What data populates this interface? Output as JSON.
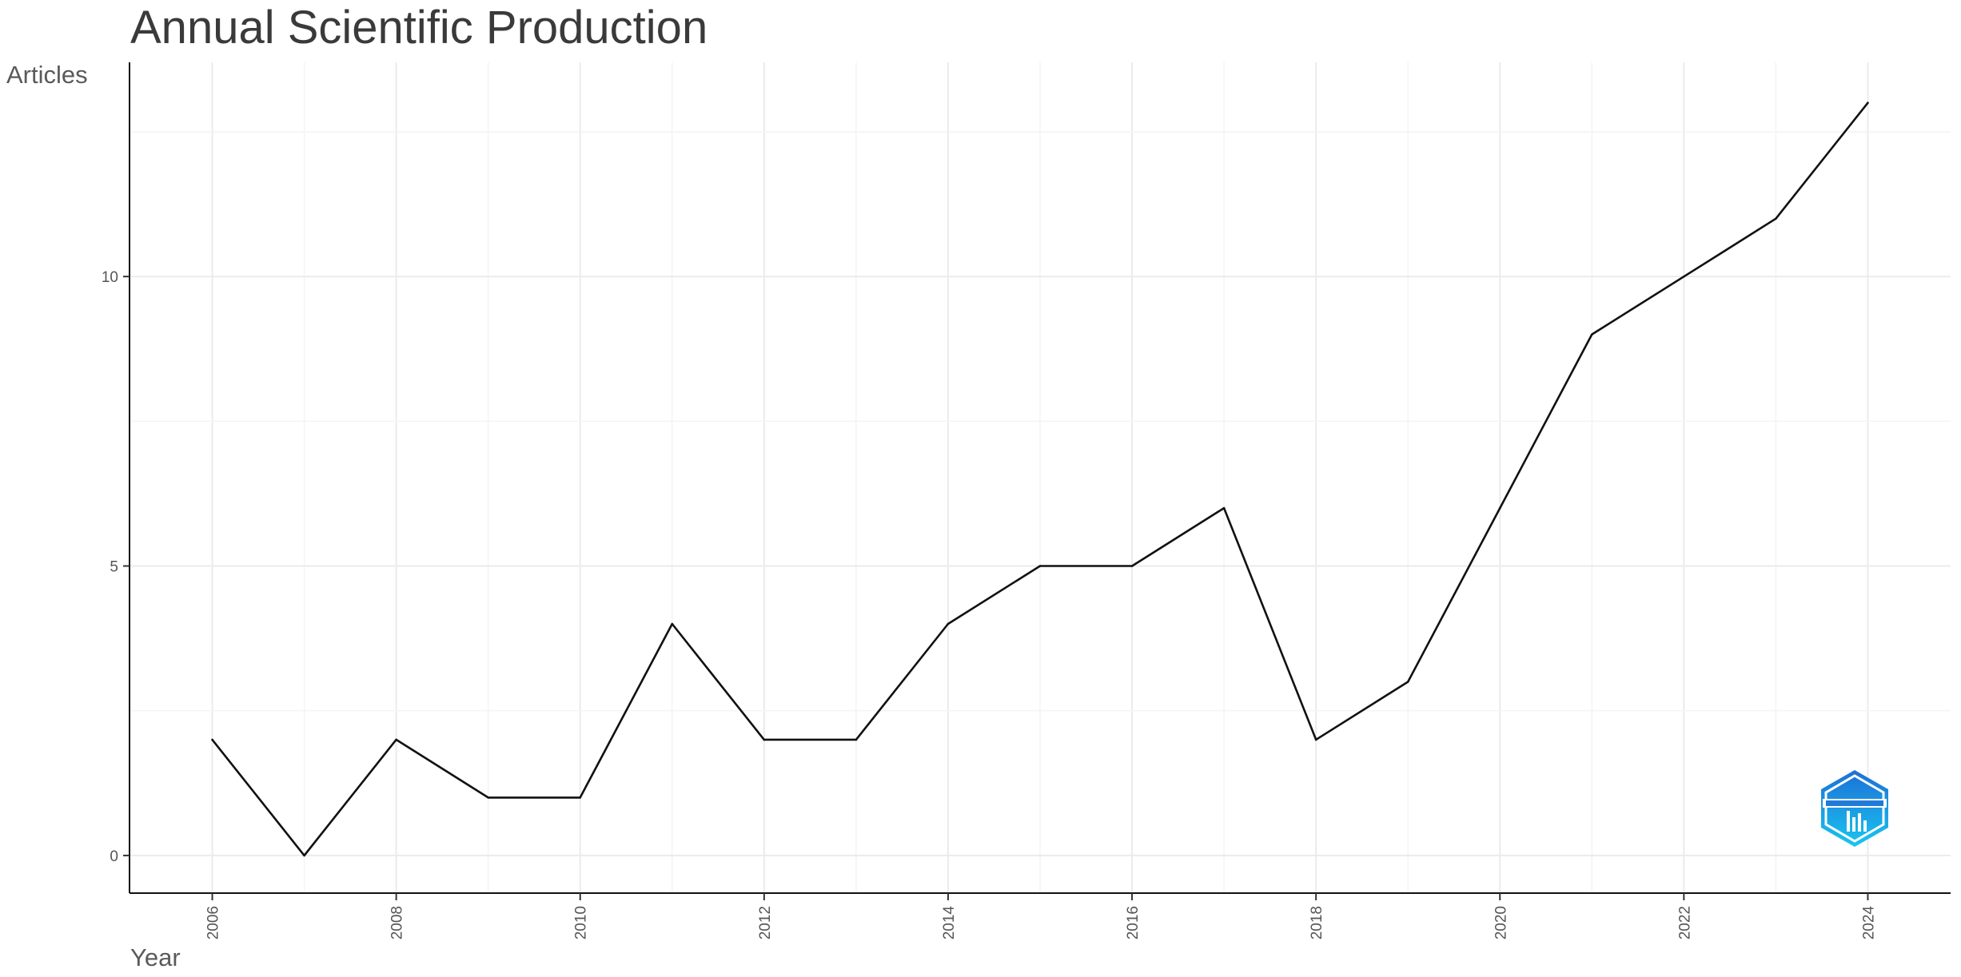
{
  "chart_data": {
    "type": "line",
    "title": "Annual Scientific Production",
    "xlabel": "Year",
    "ylabel": "Articles",
    "x": [
      2006,
      2007,
      2008,
      2009,
      2010,
      2011,
      2012,
      2013,
      2014,
      2015,
      2016,
      2017,
      2018,
      2019,
      2020,
      2021,
      2022,
      2023,
      2024
    ],
    "series": [
      {
        "name": "",
        "values": [
          2,
          0,
          2,
          1,
          1,
          4,
          2,
          2,
          4,
          5,
          5,
          6,
          2,
          3,
          6,
          9,
          10,
          11,
          13
        ]
      }
    ],
    "xlim": [
      2005.1,
      2024.9
    ],
    "ylim": [
      -0.65,
      13.7
    ],
    "x_ticks": [
      "2006",
      "2008",
      "2010",
      "2012",
      "2014",
      "2016",
      "2018",
      "2020",
      "2022",
      "2024"
    ],
    "y_ticks": [
      "0",
      "5",
      "10"
    ],
    "grid": true,
    "legend": "none",
    "colors": {
      "line": "#111111",
      "grid": "#ebebeb"
    },
    "logo": "bibliometrix-logo"
  }
}
